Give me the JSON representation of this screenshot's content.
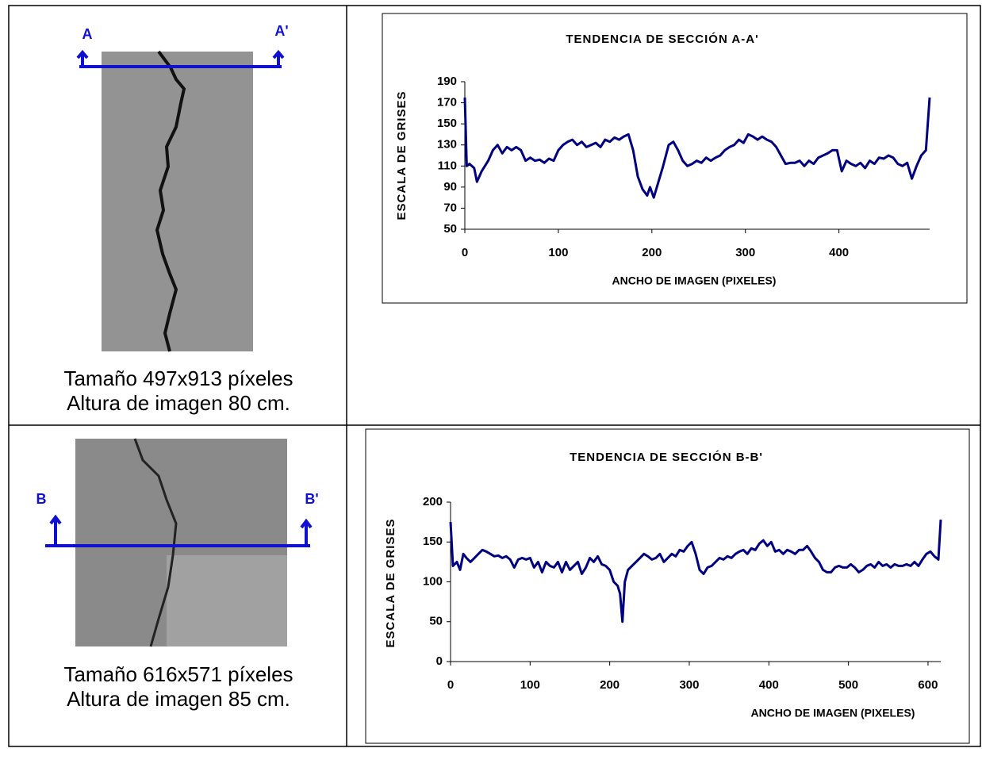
{
  "table": {
    "rows": [
      {
        "left_label": "A",
        "right_label": "A'",
        "caption": [
          "Tamaño 497x913 píxeles",
          "Altura de imagen 80 cm."
        ]
      },
      {
        "left_label": "B",
        "right_label": "B'",
        "caption": [
          "Tamaño 616x571 píxeles",
          "Altura de imagen 85 cm."
        ]
      }
    ]
  },
  "chart_data": [
    {
      "type": "line",
      "title": "TENDENCIA DE SECCIÓN A-A'",
      "x_label": "ANCHO DE IMAGEN (PIXELES)",
      "y_label": "ESCALA DE GRISES",
      "color": "#000080",
      "xlim": [
        0,
        497
      ],
      "xticks": [
        0,
        100,
        200,
        300,
        400
      ],
      "ylim": [
        50,
        190
      ],
      "yticks": [
        50,
        70,
        90,
        110,
        130,
        150,
        170,
        190
      ],
      "x": [
        0,
        2,
        5,
        10,
        13,
        18,
        25,
        30,
        35,
        40,
        45,
        50,
        55,
        60,
        65,
        70,
        75,
        80,
        85,
        90,
        95,
        100,
        105,
        110,
        115,
        120,
        125,
        130,
        135,
        140,
        145,
        150,
        155,
        160,
        165,
        170,
        175,
        180,
        185,
        190,
        195,
        198,
        202,
        207,
        212,
        218,
        223,
        228,
        233,
        238,
        243,
        248,
        253,
        258,
        263,
        268,
        273,
        278,
        283,
        288,
        293,
        298,
        303,
        308,
        313,
        318,
        323,
        328,
        333,
        338,
        343,
        348,
        353,
        358,
        363,
        368,
        373,
        378,
        383,
        388,
        393,
        398,
        403,
        408,
        413,
        418,
        423,
        428,
        433,
        438,
        443,
        448,
        453,
        458,
        463,
        468,
        473,
        478,
        483,
        488,
        493,
        497
      ],
      "values": [
        175,
        110,
        112,
        108,
        95,
        105,
        115,
        125,
        130,
        122,
        128,
        125,
        128,
        125,
        115,
        118,
        115,
        116,
        113,
        117,
        115,
        125,
        130,
        133,
        135,
        130,
        133,
        128,
        130,
        132,
        128,
        135,
        133,
        137,
        135,
        138,
        140,
        125,
        100,
        88,
        82,
        90,
        80,
        95,
        110,
        130,
        133,
        125,
        115,
        110,
        112,
        115,
        113,
        118,
        115,
        118,
        120,
        125,
        128,
        130,
        135,
        132,
        140,
        138,
        135,
        138,
        135,
        133,
        128,
        120,
        112,
        113,
        113,
        115,
        110,
        115,
        112,
        118,
        120,
        122,
        125,
        125,
        105,
        115,
        112,
        110,
        113,
        108,
        115,
        112,
        118,
        117,
        120,
        118,
        112,
        110,
        113,
        98,
        110,
        120,
        125,
        175
      ]
    },
    {
      "type": "line",
      "title": "TENDENCIA DE SECCIÓN B-B'",
      "x_label": "ANCHO DE IMAGEN (PIXELES)",
      "y_label": "ESCALA DE GRISES",
      "color": "#000080",
      "xlim": [
        0,
        616
      ],
      "xticks": [
        0,
        100,
        200,
        300,
        400,
        500,
        600
      ],
      "ylim": [
        0,
        200
      ],
      "yticks": [
        0,
        50,
        100,
        150,
        200
      ],
      "x": [
        0,
        3,
        8,
        12,
        16,
        20,
        25,
        30,
        35,
        40,
        45,
        50,
        55,
        60,
        65,
        70,
        75,
        80,
        85,
        90,
        95,
        100,
        105,
        110,
        115,
        120,
        125,
        130,
        135,
        140,
        145,
        150,
        155,
        160,
        165,
        170,
        175,
        180,
        185,
        190,
        195,
        200,
        205,
        210,
        213,
        216,
        219,
        223,
        228,
        233,
        238,
        243,
        248,
        253,
        258,
        263,
        268,
        273,
        278,
        283,
        288,
        293,
        298,
        303,
        308,
        313,
        318,
        323,
        328,
        333,
        338,
        343,
        348,
        353,
        358,
        363,
        368,
        373,
        378,
        383,
        388,
        393,
        398,
        403,
        408,
        413,
        418,
        423,
        428,
        433,
        438,
        443,
        448,
        453,
        458,
        463,
        468,
        473,
        478,
        483,
        488,
        493,
        498,
        503,
        508,
        513,
        518,
        523,
        528,
        533,
        538,
        543,
        548,
        553,
        558,
        563,
        568,
        573,
        578,
        583,
        588,
        593,
        598,
        603,
        608,
        613,
        616
      ],
      "values": [
        175,
        120,
        125,
        115,
        135,
        130,
        125,
        130,
        135,
        140,
        138,
        135,
        132,
        133,
        130,
        132,
        128,
        118,
        128,
        130,
        128,
        130,
        118,
        125,
        112,
        125,
        120,
        118,
        125,
        112,
        125,
        115,
        120,
        125,
        110,
        118,
        130,
        125,
        132,
        122,
        120,
        115,
        100,
        95,
        85,
        50,
        100,
        115,
        120,
        125,
        130,
        135,
        132,
        128,
        130,
        135,
        125,
        130,
        135,
        132,
        140,
        138,
        145,
        150,
        135,
        115,
        110,
        118,
        120,
        125,
        130,
        128,
        132,
        130,
        135,
        138,
        140,
        135,
        142,
        140,
        148,
        152,
        145,
        150,
        138,
        140,
        135,
        140,
        138,
        135,
        140,
        140,
        145,
        138,
        130,
        125,
        115,
        112,
        112,
        118,
        120,
        118,
        118,
        122,
        118,
        112,
        115,
        120,
        122,
        118,
        125,
        120,
        122,
        118,
        122,
        120,
        120,
        122,
        120,
        125,
        120,
        128,
        135,
        138,
        132,
        128,
        178
      ]
    }
  ]
}
